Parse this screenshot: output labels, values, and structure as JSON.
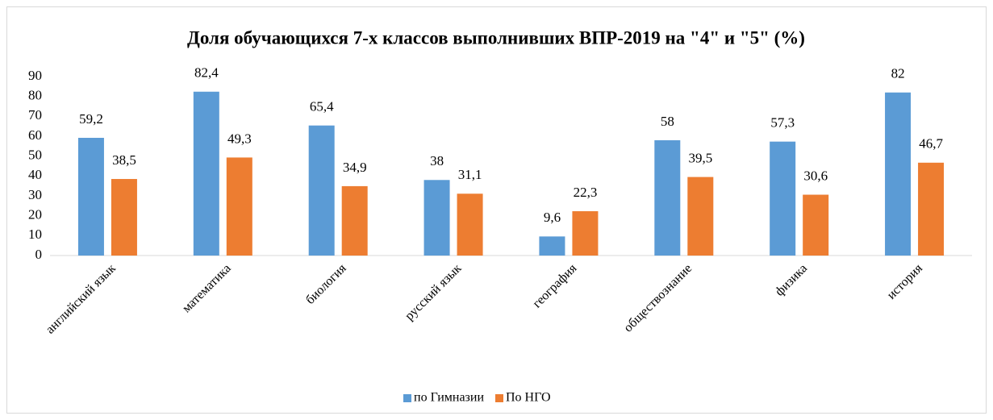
{
  "chart_data": {
    "type": "bar",
    "title": "Доля обучающихся 7-х классов выполнивших ВПР-2019 на \"4\" и \"5\" (%)",
    "categories": [
      "английский язык",
      "математика",
      "биология",
      "русский язык",
      "география",
      "обществознание",
      "физика",
      "история"
    ],
    "series": [
      {
        "name": "по Гимназии",
        "color": "#5b9bd5",
        "values": [
          59.2,
          82.4,
          65.4,
          38,
          9.6,
          58,
          57.3,
          82
        ],
        "value_labels": [
          "59,2",
          "82,4",
          "65,4",
          "38",
          "9,6",
          "58",
          "57,3",
          "82"
        ]
      },
      {
        "name": "По НГО",
        "color": "#ed7d31",
        "values": [
          38.5,
          49.3,
          34.9,
          31.1,
          22.3,
          39.5,
          30.6,
          46.7
        ],
        "value_labels": [
          "38,5",
          "49,3",
          "34,9",
          "31,1",
          "22,3",
          "39,5",
          "30,6",
          "46,7"
        ]
      }
    ],
    "ylim": [
      0,
      90
    ],
    "yticks": [
      0,
      10,
      20,
      30,
      40,
      50,
      60,
      70,
      80,
      90
    ],
    "grid": false,
    "legend": "bottom"
  }
}
